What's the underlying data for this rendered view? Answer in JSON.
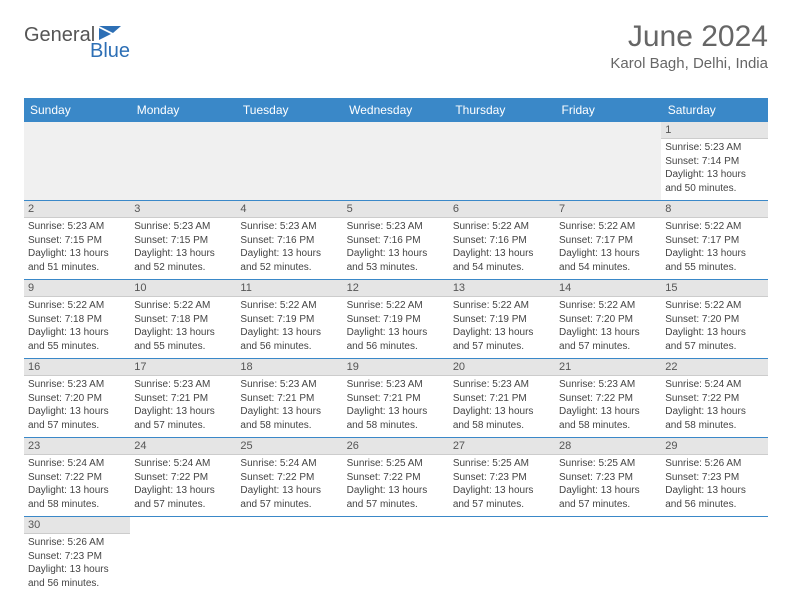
{
  "logo": {
    "text_general": "General",
    "text_blue": "Blue",
    "icon_color": "#2d6fb5"
  },
  "header": {
    "month_title": "June 2024",
    "location": "Karol Bagh, Delhi, India"
  },
  "styling": {
    "header_bg": "#3a88c8",
    "header_text": "#ffffff",
    "daynum_bg": "#e5e5e5",
    "row_divider": "#3a88c8",
    "body_text": "#444444",
    "title_color": "#666666",
    "font_family": "Arial",
    "daynum_fontsize": 11,
    "detail_fontsize": 10,
    "header_fontsize": 12,
    "title_fontsize": 30,
    "location_fontsize": 15
  },
  "weekdays": [
    "Sunday",
    "Monday",
    "Tuesday",
    "Wednesday",
    "Thursday",
    "Friday",
    "Saturday"
  ],
  "weeks": [
    [
      null,
      null,
      null,
      null,
      null,
      null,
      {
        "n": "1",
        "sunrise": "Sunrise: 5:23 AM",
        "sunset": "Sunset: 7:14 PM",
        "daylight": "Daylight: 13 hours and 50 minutes."
      }
    ],
    [
      {
        "n": "2",
        "sunrise": "Sunrise: 5:23 AM",
        "sunset": "Sunset: 7:15 PM",
        "daylight": "Daylight: 13 hours and 51 minutes."
      },
      {
        "n": "3",
        "sunrise": "Sunrise: 5:23 AM",
        "sunset": "Sunset: 7:15 PM",
        "daylight": "Daylight: 13 hours and 52 minutes."
      },
      {
        "n": "4",
        "sunrise": "Sunrise: 5:23 AM",
        "sunset": "Sunset: 7:16 PM",
        "daylight": "Daylight: 13 hours and 52 minutes."
      },
      {
        "n": "5",
        "sunrise": "Sunrise: 5:23 AM",
        "sunset": "Sunset: 7:16 PM",
        "daylight": "Daylight: 13 hours and 53 minutes."
      },
      {
        "n": "6",
        "sunrise": "Sunrise: 5:22 AM",
        "sunset": "Sunset: 7:16 PM",
        "daylight": "Daylight: 13 hours and 54 minutes."
      },
      {
        "n": "7",
        "sunrise": "Sunrise: 5:22 AM",
        "sunset": "Sunset: 7:17 PM",
        "daylight": "Daylight: 13 hours and 54 minutes."
      },
      {
        "n": "8",
        "sunrise": "Sunrise: 5:22 AM",
        "sunset": "Sunset: 7:17 PM",
        "daylight": "Daylight: 13 hours and 55 minutes."
      }
    ],
    [
      {
        "n": "9",
        "sunrise": "Sunrise: 5:22 AM",
        "sunset": "Sunset: 7:18 PM",
        "daylight": "Daylight: 13 hours and 55 minutes."
      },
      {
        "n": "10",
        "sunrise": "Sunrise: 5:22 AM",
        "sunset": "Sunset: 7:18 PM",
        "daylight": "Daylight: 13 hours and 55 minutes."
      },
      {
        "n": "11",
        "sunrise": "Sunrise: 5:22 AM",
        "sunset": "Sunset: 7:19 PM",
        "daylight": "Daylight: 13 hours and 56 minutes."
      },
      {
        "n": "12",
        "sunrise": "Sunrise: 5:22 AM",
        "sunset": "Sunset: 7:19 PM",
        "daylight": "Daylight: 13 hours and 56 minutes."
      },
      {
        "n": "13",
        "sunrise": "Sunrise: 5:22 AM",
        "sunset": "Sunset: 7:19 PM",
        "daylight": "Daylight: 13 hours and 57 minutes."
      },
      {
        "n": "14",
        "sunrise": "Sunrise: 5:22 AM",
        "sunset": "Sunset: 7:20 PM",
        "daylight": "Daylight: 13 hours and 57 minutes."
      },
      {
        "n": "15",
        "sunrise": "Sunrise: 5:22 AM",
        "sunset": "Sunset: 7:20 PM",
        "daylight": "Daylight: 13 hours and 57 minutes."
      }
    ],
    [
      {
        "n": "16",
        "sunrise": "Sunrise: 5:23 AM",
        "sunset": "Sunset: 7:20 PM",
        "daylight": "Daylight: 13 hours and 57 minutes."
      },
      {
        "n": "17",
        "sunrise": "Sunrise: 5:23 AM",
        "sunset": "Sunset: 7:21 PM",
        "daylight": "Daylight: 13 hours and 57 minutes."
      },
      {
        "n": "18",
        "sunrise": "Sunrise: 5:23 AM",
        "sunset": "Sunset: 7:21 PM",
        "daylight": "Daylight: 13 hours and 58 minutes."
      },
      {
        "n": "19",
        "sunrise": "Sunrise: 5:23 AM",
        "sunset": "Sunset: 7:21 PM",
        "daylight": "Daylight: 13 hours and 58 minutes."
      },
      {
        "n": "20",
        "sunrise": "Sunrise: 5:23 AM",
        "sunset": "Sunset: 7:21 PM",
        "daylight": "Daylight: 13 hours and 58 minutes."
      },
      {
        "n": "21",
        "sunrise": "Sunrise: 5:23 AM",
        "sunset": "Sunset: 7:22 PM",
        "daylight": "Daylight: 13 hours and 58 minutes."
      },
      {
        "n": "22",
        "sunrise": "Sunrise: 5:24 AM",
        "sunset": "Sunset: 7:22 PM",
        "daylight": "Daylight: 13 hours and 58 minutes."
      }
    ],
    [
      {
        "n": "23",
        "sunrise": "Sunrise: 5:24 AM",
        "sunset": "Sunset: 7:22 PM",
        "daylight": "Daylight: 13 hours and 58 minutes."
      },
      {
        "n": "24",
        "sunrise": "Sunrise: 5:24 AM",
        "sunset": "Sunset: 7:22 PM",
        "daylight": "Daylight: 13 hours and 57 minutes."
      },
      {
        "n": "25",
        "sunrise": "Sunrise: 5:24 AM",
        "sunset": "Sunset: 7:22 PM",
        "daylight": "Daylight: 13 hours and 57 minutes."
      },
      {
        "n": "26",
        "sunrise": "Sunrise: 5:25 AM",
        "sunset": "Sunset: 7:22 PM",
        "daylight": "Daylight: 13 hours and 57 minutes."
      },
      {
        "n": "27",
        "sunrise": "Sunrise: 5:25 AM",
        "sunset": "Sunset: 7:23 PM",
        "daylight": "Daylight: 13 hours and 57 minutes."
      },
      {
        "n": "28",
        "sunrise": "Sunrise: 5:25 AM",
        "sunset": "Sunset: 7:23 PM",
        "daylight": "Daylight: 13 hours and 57 minutes."
      },
      {
        "n": "29",
        "sunrise": "Sunrise: 5:26 AM",
        "sunset": "Sunset: 7:23 PM",
        "daylight": "Daylight: 13 hours and 56 minutes."
      }
    ],
    [
      {
        "n": "30",
        "sunrise": "Sunrise: 5:26 AM",
        "sunset": "Sunset: 7:23 PM",
        "daylight": "Daylight: 13 hours and 56 minutes."
      },
      null,
      null,
      null,
      null,
      null,
      null
    ]
  ]
}
